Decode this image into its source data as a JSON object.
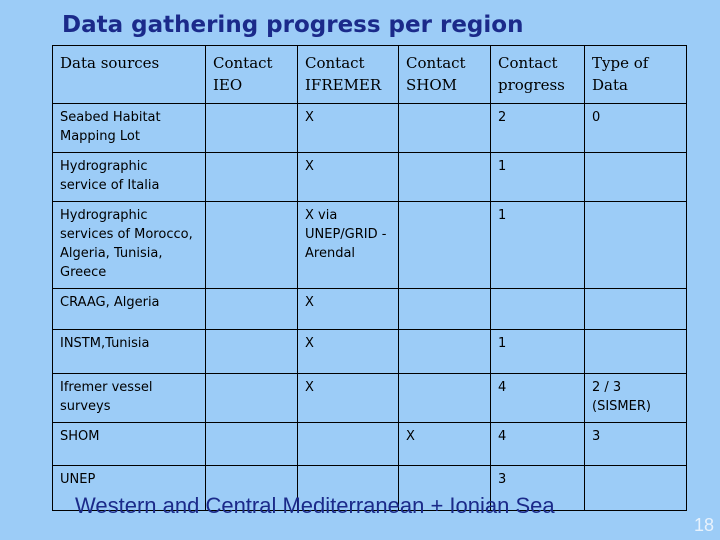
{
  "header": {
    "title": "Data gathering progress per region"
  },
  "table": {
    "columns": [
      "Data sources",
      "Contact IEO",
      "Contact IFREMER",
      "Contact SHOM",
      "Contact progress",
      "Type of Data"
    ],
    "rows": [
      [
        "Seabed Habitat Mapping Lot",
        null,
        "X",
        null,
        "2",
        "0"
      ],
      [
        "Hydrographic service of Italia",
        null,
        "X",
        null,
        "1",
        null
      ],
      [
        "Hydrographic services of Morocco, Algeria, Tunisia, Greece",
        null,
        "X via UNEP/GRID -Arendal",
        null,
        "1",
        null
      ],
      [
        "CRAAG, Algeria",
        null,
        "X",
        null,
        null,
        null
      ],
      [
        "INSTM,Tunisia",
        null,
        "X",
        null,
        "1",
        null
      ],
      [
        "Ifremer vessel surveys",
        null,
        "X",
        null,
        "4",
        "2 / 3 (SISMER)"
      ],
      [
        "SHOM",
        null,
        null,
        "X",
        "4",
        "3"
      ],
      [
        "UNEP",
        null,
        null,
        null,
        "3",
        null
      ]
    ]
  },
  "footer": {
    "caption": "Western and Central Mediterranean + Ionian Sea",
    "page_number": "18"
  }
}
